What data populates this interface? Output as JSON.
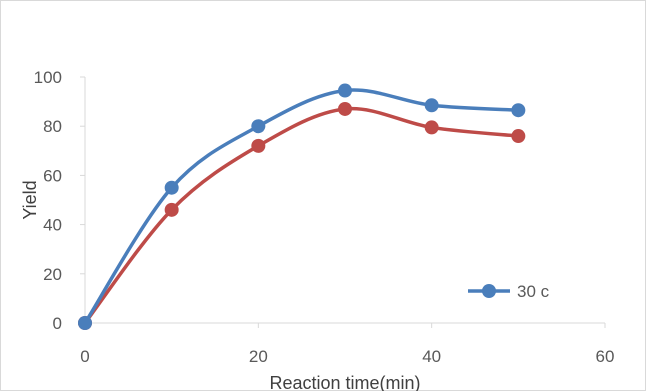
{
  "chart_data": {
    "type": "line",
    "title": "",
    "xlabel": "Reaction time(min)",
    "ylabel": "Yield",
    "xlim": [
      0,
      60
    ],
    "ylim": [
      0,
      100
    ],
    "x_ticks": [
      "0",
      "20",
      "40",
      "60"
    ],
    "y_ticks": [
      "0",
      "20",
      "40",
      "60",
      "80",
      "100"
    ],
    "grid": false,
    "legend_position": "bottom-right",
    "smooth": true,
    "series": [
      {
        "name": "30 c",
        "color": "#4a7ebb",
        "show_in_legend": true,
        "points": [
          [
            0,
            0
          ],
          [
            10,
            55
          ],
          [
            20,
            80
          ],
          [
            30,
            94.5
          ],
          [
            40,
            88.5
          ],
          [
            50,
            86.5
          ]
        ]
      },
      {
        "name": "",
        "color": "#be4b48",
        "show_in_legend": false,
        "points": [
          [
            0,
            0
          ],
          [
            10,
            46
          ],
          [
            20,
            72
          ],
          [
            30,
            87
          ],
          [
            40,
            79.5
          ],
          [
            50,
            76
          ]
        ]
      }
    ]
  }
}
